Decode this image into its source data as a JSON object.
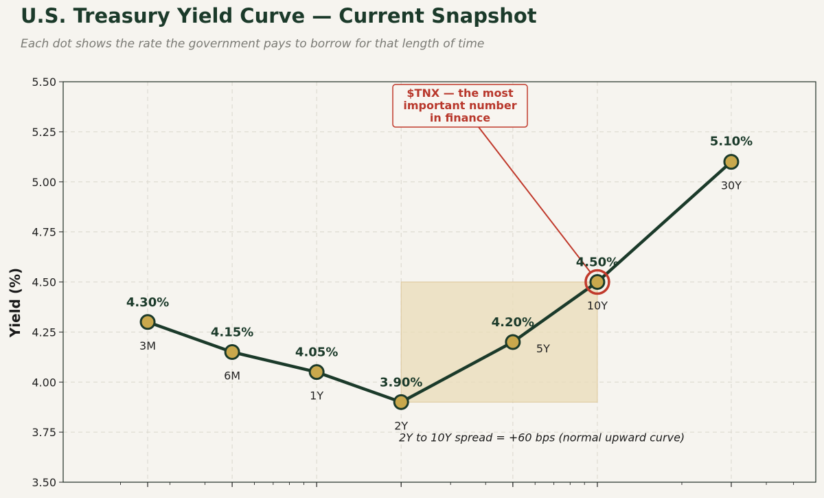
{
  "header": {
    "title": "U.S. Treasury Yield Curve — Current Snapshot",
    "subtitle": "Each dot shows the rate the government pays to borrow for that length of time"
  },
  "colors": {
    "background": "#f6f4ef",
    "line": "#1b3a2a",
    "marker_fill": "#c9a84c",
    "highlight": "#c0392b",
    "spread_box": "#e9dcb8"
  },
  "chart_data": {
    "type": "line",
    "title": "U.S. Treasury Yield Curve — Current Snapshot",
    "subtitle": "Each dot shows the rate the government pays to borrow for that length of time",
    "xlabel": "",
    "ylabel": "Yield (%)",
    "ylim": [
      3.5,
      5.5
    ],
    "yticks": [
      "3.50",
      "3.75",
      "4.00",
      "4.25",
      "4.50",
      "4.75",
      "5.00",
      "5.25",
      "5.50"
    ],
    "x_scale": "log",
    "x_years": [
      0.25,
      0.5,
      1,
      2,
      5,
      10,
      30
    ],
    "categories": [
      "3M",
      "6M",
      "1Y",
      "2Y",
      "5Y",
      "10Y",
      "30Y"
    ],
    "values": [
      4.3,
      4.15,
      4.05,
      3.9,
      4.2,
      4.5,
      5.1
    ],
    "value_labels": [
      "4.30%",
      "4.15%",
      "4.05%",
      "3.90%",
      "4.20%",
      "4.50%",
      "5.10%"
    ],
    "grid": true,
    "highlight": {
      "category": "10Y",
      "label": [
        "$TNX — the most",
        "important number",
        "in finance"
      ]
    },
    "spread": {
      "from": "2Y",
      "to": "10Y",
      "text": "2Y to 10Y spread = +60 bps (normal upward curve)"
    }
  }
}
